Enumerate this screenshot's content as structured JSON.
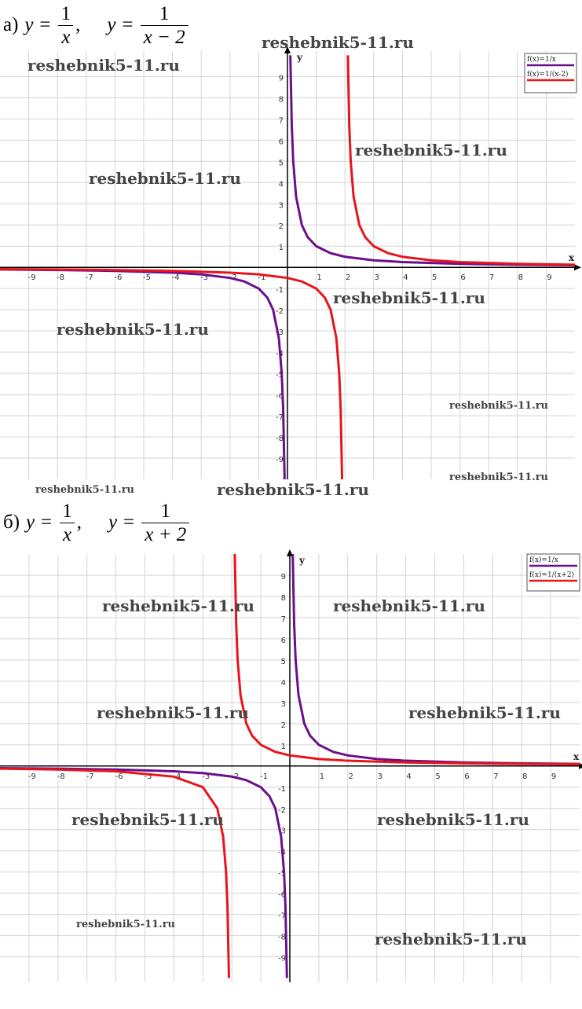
{
  "chart_data": [
    {
      "type": "line",
      "heading": {
        "label": "а)",
        "formulas": [
          {
            "lhs": "y =",
            "num": "1",
            "den": "x",
            "sep": ","
          },
          {
            "lhs": "y =",
            "num": "1",
            "den": "x − 2"
          }
        ]
      },
      "x_label": "x",
      "y_label": "y",
      "xlim": [
        -10,
        10
      ],
      "ylim": [
        -10,
        10.2
      ],
      "xticks": [
        -9,
        -8,
        -7,
        -6,
        -5,
        -4,
        -3,
        -2,
        -1,
        1,
        2,
        3,
        4,
        5,
        6,
        7,
        8,
        9
      ],
      "yticks": [
        -9,
        -8,
        -7,
        -6,
        -5,
        -4,
        -3,
        -2,
        -1,
        1,
        2,
        3,
        4,
        5,
        6,
        7,
        8,
        9
      ],
      "grid": true,
      "legend": "top-right",
      "series": [
        {
          "name": "f(x)=1/x",
          "color": "#6a0f8e",
          "x": [
            -10,
            -8,
            -6,
            -4,
            -3,
            -2,
            -1.5,
            -1,
            -0.7,
            -0.5,
            -0.3,
            -0.2,
            -0.15,
            -0.1,
            null,
            0.1,
            0.15,
            0.2,
            0.3,
            0.5,
            0.7,
            1,
            1.5,
            2,
            3,
            4,
            6,
            8,
            10
          ],
          "values": [
            -0.1,
            -0.125,
            -0.167,
            -0.25,
            -0.333,
            -0.5,
            -0.667,
            -1,
            -1.429,
            -2,
            -3.333,
            -5,
            -6.667,
            -10,
            null,
            10,
            6.667,
            5,
            3.333,
            2,
            1.429,
            1,
            0.667,
            0.5,
            0.333,
            0.25,
            0.167,
            0.125,
            0.1
          ]
        },
        {
          "name": "f(x)=1/(x-2)",
          "color": "#e8141c",
          "x": [
            -10,
            -8,
            -6,
            -4,
            -2,
            -1,
            0,
            0.5,
            1,
            1.3,
            1.5,
            1.7,
            1.8,
            1.85,
            1.9,
            null,
            2.1,
            2.15,
            2.2,
            2.3,
            2.5,
            2.7,
            3,
            3.5,
            4,
            5,
            6,
            8,
            10
          ],
          "values": [
            -0.083,
            -0.1,
            -0.125,
            -0.167,
            -0.25,
            -0.333,
            -0.5,
            -0.667,
            -1,
            -1.429,
            -2,
            -3.333,
            -5,
            -6.667,
            -10,
            null,
            10,
            6.667,
            5,
            3.333,
            2,
            1.429,
            1,
            0.667,
            0.5,
            0.333,
            0.25,
            0.167,
            0.125
          ]
        }
      ],
      "watermarks": [
        "reshebnik5-11.ru",
        "reshebnik5-11.ru",
        "reshebnik5-11.ru",
        "reshebnik5-11.ru",
        "reshebnik5-11.ru",
        "reshebnik5-11.ru",
        "reshebnik5-11.ru",
        "reshebnik5-11.ru",
        "reshebnik5-11.ru",
        "reshebnik5-11.ru"
      ]
    },
    {
      "type": "line",
      "heading": {
        "label": "б)",
        "formulas": [
          {
            "lhs": "y =",
            "num": "1",
            "den": "x",
            "sep": ","
          },
          {
            "lhs": "y =",
            "num": "1",
            "den": "x + 2"
          }
        ]
      },
      "x_label": "x",
      "y_label": "y",
      "xlim": [
        -10,
        10
      ],
      "ylim": [
        -10.2,
        10
      ],
      "xticks": [
        -9,
        -8,
        -7,
        -6,
        -5,
        -4,
        -3,
        -2,
        -1,
        1,
        2,
        3,
        4,
        5,
        6,
        7,
        8,
        9
      ],
      "yticks": [
        -9,
        -8,
        -7,
        -6,
        -5,
        -4,
        -3,
        -2,
        -1,
        1,
        2,
        3,
        4,
        5,
        6,
        7,
        8,
        9
      ],
      "grid": true,
      "legend": "top-right",
      "series": [
        {
          "name": "f(x)=1/x",
          "color": "#6a0f8e",
          "x": [
            -10,
            -8,
            -6,
            -4,
            -3,
            -2,
            -1.5,
            -1,
            -0.7,
            -0.5,
            -0.3,
            -0.2,
            -0.15,
            -0.1,
            null,
            0.1,
            0.15,
            0.2,
            0.3,
            0.5,
            0.7,
            1,
            1.5,
            2,
            3,
            4,
            6,
            8,
            10
          ],
          "values": [
            -0.1,
            -0.125,
            -0.167,
            -0.25,
            -0.333,
            -0.5,
            -0.667,
            -1,
            -1.429,
            -2,
            -3.333,
            -5,
            -6.667,
            -10,
            null,
            10,
            6.667,
            5,
            3.333,
            2,
            1.429,
            1,
            0.667,
            0.5,
            0.333,
            0.25,
            0.167,
            0.125,
            0.1
          ]
        },
        {
          "name": "f(x)=1/(x+2)",
          "color": "#e8141c",
          "x": [
            -10,
            -8,
            -6,
            -4,
            -3,
            -2.5,
            -2.3,
            -2.2,
            -2.15,
            -2.1,
            null,
            -1.9,
            -1.85,
            -1.8,
            -1.7,
            -1.5,
            -1.3,
            -1,
            -0.5,
            0,
            1,
            2,
            4,
            6,
            8,
            10
          ],
          "values": [
            -0.125,
            -0.167,
            -0.25,
            -0.5,
            -1,
            -2,
            -3.333,
            -5,
            -6.667,
            -10,
            null,
            10,
            6.667,
            5,
            3.333,
            2,
            1.429,
            1,
            0.667,
            0.5,
            0.333,
            0.25,
            0.167,
            0.125,
            0.1,
            0.083
          ]
        }
      ],
      "watermarks": [
        "reshebnik5-11.ru",
        "reshebnik5-11.ru",
        "reshebnik5-11.ru",
        "reshebnik5-11.ru",
        "reshebnik5-11.ru",
        "reshebnik5-11.ru",
        "reshebnik5-11.ru",
        "reshebnik5-11.ru"
      ]
    }
  ]
}
